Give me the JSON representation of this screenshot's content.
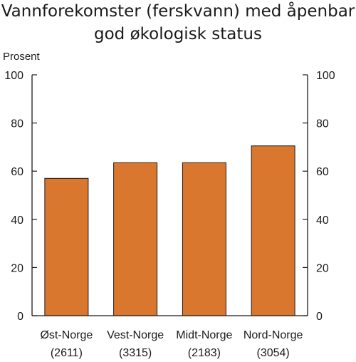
{
  "chart_data": {
    "type": "bar",
    "title_lines": [
      "Vannforekomster (ferskvann) med åpenbar",
      "god økologisk status"
    ],
    "ylabel": "Prosent",
    "ylim": [
      0,
      100
    ],
    "yticks": [
      0,
      20,
      40,
      60,
      80,
      100
    ],
    "categories": [
      {
        "name": "Øst-Norge",
        "count": "(2611)"
      },
      {
        "name": "Vest-Norge",
        "count": "(3315)"
      },
      {
        "name": "Midt-Norge",
        "count": "(2183)"
      },
      {
        "name": "Nord-Norge",
        "count": "(3054)"
      }
    ],
    "values": [
      57,
      63.5,
      63.5,
      70.5
    ],
    "grid": false,
    "bar_color": "#d9772f"
  }
}
